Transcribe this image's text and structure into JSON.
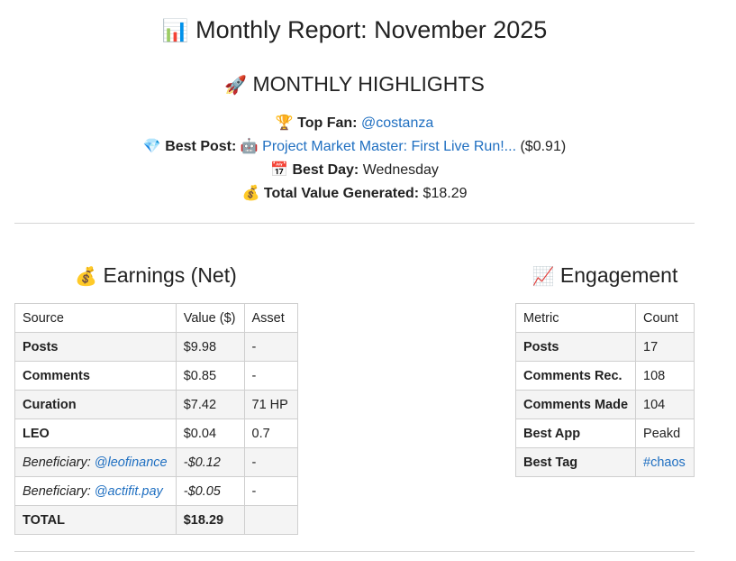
{
  "title": {
    "icon": "📊",
    "text": "Monthly Report: November 2025"
  },
  "highlights": {
    "heading_icon": "🚀",
    "heading": "MONTHLY HIGHLIGHTS",
    "top_fan": {
      "icon": "🏆",
      "label": "Top Fan:",
      "value": "@costanza"
    },
    "best_post": {
      "icon": "💎",
      "label": "Best Post:",
      "post_icon": "🤖",
      "link": "Project Market Master: First Live Run!...",
      "value": "($0.91)"
    },
    "best_day": {
      "icon": "📅",
      "label": "Best Day:",
      "value": "Wednesday"
    },
    "total_value": {
      "icon": "💰",
      "label": "Total Value Generated:",
      "value": "$18.29"
    }
  },
  "earnings": {
    "icon": "💰",
    "title": "Earnings (Net)",
    "headers": [
      "Source",
      "Value ($)",
      "Asset"
    ],
    "rows": [
      {
        "source": "Posts",
        "value": "$9.98",
        "asset": "-"
      },
      {
        "source": "Comments",
        "value": "$0.85",
        "asset": "-"
      },
      {
        "source": "Curation",
        "value": "$7.42",
        "asset": "71 HP"
      },
      {
        "source": "LEO",
        "value": "$0.04",
        "asset": "0.7"
      },
      {
        "source_prefix": "Beneficiary: ",
        "source_link": "@leofinance",
        "value": "-$0.12",
        "asset": "-"
      },
      {
        "source_prefix": "Beneficiary: ",
        "source_link": "@actifit.pay",
        "value": "-$0.05",
        "asset": "-"
      },
      {
        "source": "TOTAL",
        "value": "$18.29",
        "asset": ""
      }
    ]
  },
  "engagement": {
    "icon": "📈",
    "title": "Engagement",
    "headers": [
      "Metric",
      "Count"
    ],
    "rows": [
      {
        "metric": "Posts",
        "count": "17"
      },
      {
        "metric": "Comments Rec.",
        "count": "108"
      },
      {
        "metric": "Comments Made",
        "count": "104"
      },
      {
        "metric": "Best App",
        "count": "Peakd"
      },
      {
        "metric": "Best Tag",
        "count": "#chaos"
      }
    ]
  }
}
